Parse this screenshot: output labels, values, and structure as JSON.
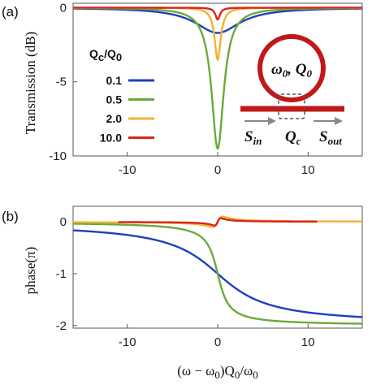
{
  "chart_data": [
    {
      "type": "line",
      "panel_label": "(a)",
      "ylabel": "Transmission (dB)",
      "xlim": [
        -16,
        16
      ],
      "ylim": [
        -10,
        0.3
      ],
      "xticks": [
        -10,
        0,
        10
      ],
      "yticks": [
        0,
        -5,
        -10
      ],
      "xtick_labels": [
        "-10",
        "0",
        "10"
      ],
      "ytick_labels": [
        "0",
        "-5",
        "-10"
      ],
      "grid": false,
      "legend": {
        "title": "Qc/Q0",
        "title_main": "Q",
        "title_sub1": "c",
        "title_sep": "/Q",
        "title_sub2": "0",
        "placement": "left",
        "entries": [
          "0.1",
          "0.5",
          "2.0",
          "10.0"
        ]
      },
      "series": [
        {
          "name": "0.1",
          "color": "#1f3fbf",
          "ratio": 0.1,
          "min_db": -1.7
        },
        {
          "name": "0.5",
          "color": "#6aaa3a",
          "ratio": 0.5,
          "min_db": -9.5
        },
        {
          "name": "2.0",
          "color": "#f2b233",
          "ratio": 2.0,
          "min_db": -3.5
        },
        {
          "name": "10.0",
          "color": "#d7261e",
          "ratio": 10.0,
          "min_db": -0.8
        }
      ]
    },
    {
      "type": "line",
      "panel_label": "(b)",
      "ylabel": "phase(π)",
      "xlabel": "(ω − ω0)Q0/ω0",
      "xlim": [
        -16,
        16
      ],
      "ylim": [
        -2.05,
        0.3
      ],
      "xticks": [
        -10,
        0,
        10
      ],
      "yticks": [
        0,
        -1,
        -2
      ],
      "xtick_labels": [
        "-10",
        "0",
        "10"
      ],
      "ytick_labels": [
        "0",
        "-1",
        "-2"
      ],
      "grid": false,
      "series": [
        {
          "name": "0.1",
          "color": "#1f3fbf",
          "ratio": 0.1
        },
        {
          "name": "0.5",
          "color": "#6aaa3a",
          "ratio": 0.5
        },
        {
          "name": "2.0",
          "color": "#f2b233",
          "ratio": 2.0
        },
        {
          "name": "10.0",
          "color": "#d7261e",
          "ratio": 10.0
        }
      ]
    }
  ],
  "inset": {
    "ring_label": "ω0, Q0",
    "ring_omega": "ω",
    "ring_omega_sub": "0",
    "ring_sep": ", Q",
    "ring_q_sub": "0",
    "s_in": "S",
    "s_in_sub": "in",
    "q_c": "Q",
    "q_c_sub": "c",
    "s_out": "S",
    "s_out_sub": "out",
    "ring_color": "#c0191a",
    "waveguide_color": "#c0191a"
  },
  "xaxis_label": {
    "prefix": "(ω − ω",
    "sub1": "0",
    "mid": ")Q",
    "sub2": "0",
    "sep": "/ω",
    "sub3": "0"
  }
}
